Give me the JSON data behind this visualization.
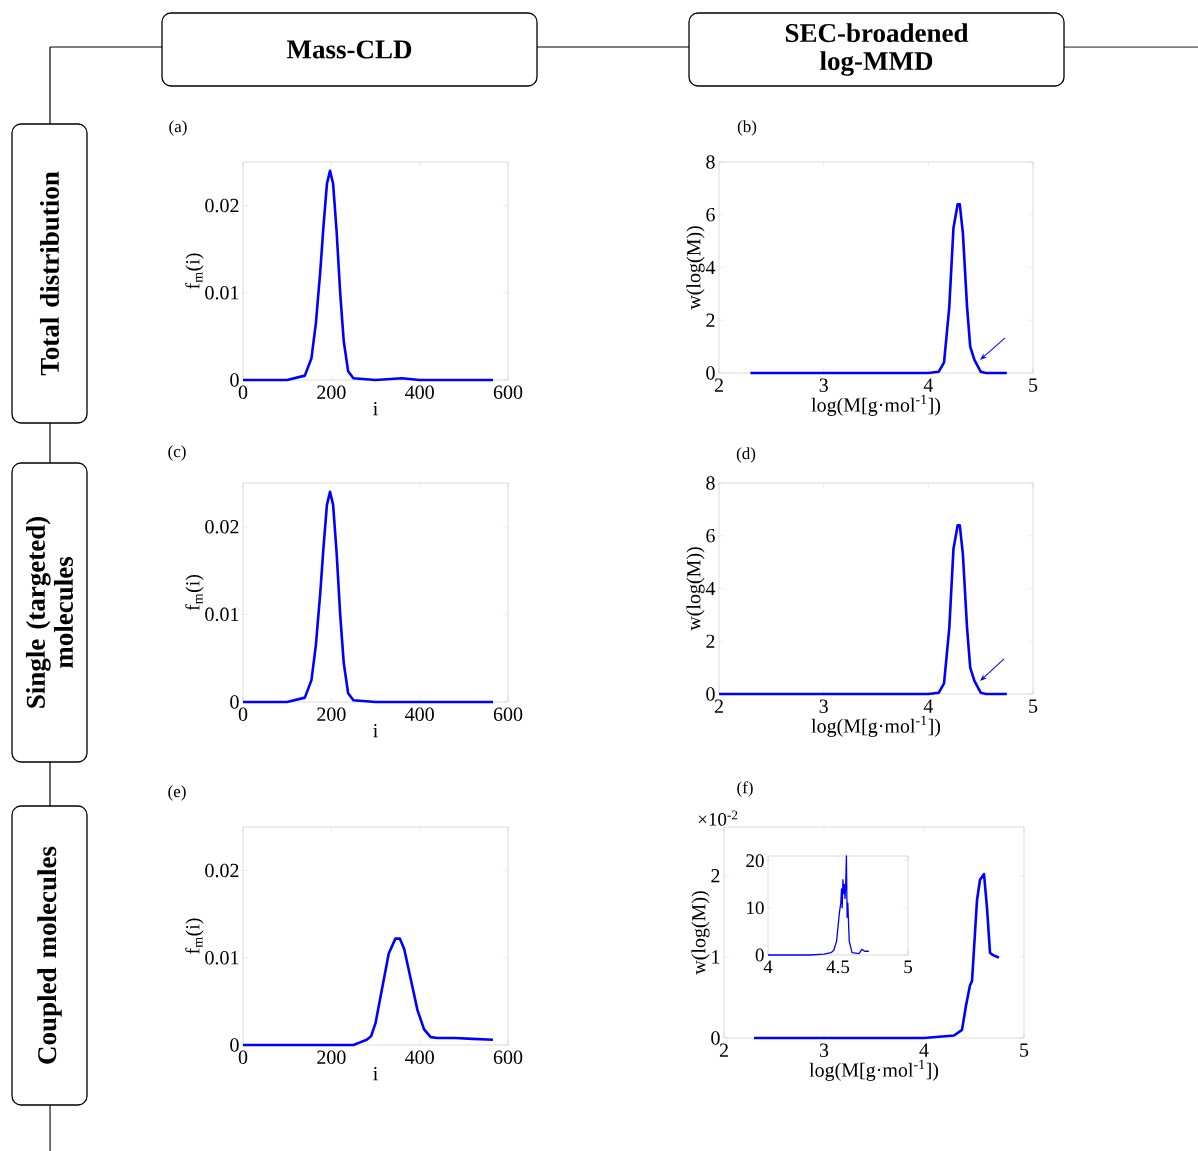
{
  "chart_data": [
    {
      "type": "other",
      "annotations": [
        "Mass-CLD",
        "SEC-broadened log-MMD",
        "Total distribution",
        "Single (targeted) molecules",
        "Coupled molecules"
      ]
    },
    {
      "type": "line",
      "title": "(a)",
      "xlabel": "i",
      "ylabel": "f$_{m}$(i)",
      "xlim": [
        0,
        600
      ],
      "ylim": [
        0,
        0.025
      ],
      "xticks": [
        0,
        200,
        400,
        600
      ],
      "yticks": [
        0,
        0.01,
        0.02
      ],
      "series": [
        {
          "color": "#0000ff",
          "x": [
            0,
            100,
            140,
            155,
            165,
            175,
            182,
            190,
            197,
            204,
            212,
            220,
            228,
            238,
            250,
            300,
            360,
            400,
            500,
            566
          ],
          "values": [
            0,
            0,
            0.0005,
            0.0025,
            0.0065,
            0.0125,
            0.0175,
            0.0225,
            0.024,
            0.0225,
            0.017,
            0.01,
            0.0045,
            0.001,
            0.0002,
            0,
            0.0002,
            0,
            0,
            0
          ]
        }
      ]
    },
    {
      "type": "line",
      "title": "(b)",
      "xlabel": "log(M[g·mol$^{-1}$])",
      "ylabel": "w(log(M))",
      "xlim": [
        2,
        5
      ],
      "ylim": [
        0,
        8
      ],
      "xticks": [
        2,
        3,
        4,
        5
      ],
      "yticks": [
        0,
        2,
        4,
        6,
        8
      ],
      "series": [
        {
          "color": "#0000ff",
          "x": [
            2.3,
            3,
            3.5,
            4.0,
            4.1,
            4.15,
            4.2,
            4.24,
            4.28,
            4.3,
            4.33,
            4.37,
            4.4,
            4.44,
            4.46,
            4.5,
            4.55,
            4.75
          ],
          "values": [
            0,
            0,
            0,
            0,
            0.05,
            0.4,
            2.5,
            5.5,
            6.4,
            6.4,
            5.3,
            2.5,
            1.0,
            0.5,
            0.35,
            0.05,
            0,
            0
          ]
        }
      ]
    },
    {
      "type": "line",
      "title": "(c)",
      "xlabel": "i",
      "ylabel": "f$_{m}$(i)",
      "xlim": [
        0,
        600
      ],
      "ylim": [
        0,
        0.025
      ],
      "xticks": [
        0,
        200,
        400,
        600
      ],
      "yticks": [
        0,
        0.01,
        0.02
      ],
      "series": [
        {
          "color": "#0000ff",
          "x": [
            0,
            100,
            140,
            155,
            165,
            175,
            182,
            190,
            197,
            204,
            212,
            220,
            228,
            238,
            250,
            300,
            400,
            500,
            566
          ],
          "values": [
            0,
            0,
            0.0005,
            0.0025,
            0.0065,
            0.0125,
            0.0175,
            0.0225,
            0.024,
            0.0225,
            0.017,
            0.01,
            0.0045,
            0.001,
            0.0002,
            0,
            0,
            0,
            0
          ]
        }
      ]
    },
    {
      "type": "line",
      "title": "(d)",
      "xlabel": "log(M[g·mol$^{-1}$])",
      "ylabel": "w(log(M))",
      "xlim": [
        2,
        5
      ],
      "ylim": [
        0,
        8
      ],
      "xticks": [
        2,
        3,
        4,
        5
      ],
      "yticks": [
        0,
        2,
        4,
        6,
        8
      ],
      "series": [
        {
          "color": "#0000ff",
          "x": [
            2.0,
            3,
            3.5,
            4.0,
            4.1,
            4.15,
            4.2,
            4.24,
            4.28,
            4.3,
            4.33,
            4.37,
            4.4,
            4.44,
            4.46,
            4.5,
            4.55,
            4.75
          ],
          "values": [
            0,
            0,
            0,
            0,
            0.05,
            0.4,
            2.5,
            5.5,
            6.4,
            6.4,
            5.3,
            2.5,
            1.0,
            0.5,
            0.35,
            0.05,
            0,
            0
          ]
        }
      ]
    },
    {
      "type": "line",
      "title": "(e)",
      "xlabel": "i",
      "ylabel": "f$_{m}$(i)",
      "xlim": [
        0,
        600
      ],
      "ylim": [
        0,
        0.025
      ],
      "xticks": [
        0,
        200,
        400,
        600
      ],
      "yticks": [
        0,
        0.01,
        0.02
      ],
      "series": [
        {
          "color": "#0000ff",
          "x": [
            0,
            100,
            200,
            250,
            265,
            280,
            290,
            300,
            315,
            330,
            345,
            355,
            365,
            380,
            395,
            410,
            425,
            440,
            480,
            520,
            566
          ],
          "values": [
            0,
            0,
            0,
            0,
            0.0003,
            0.0006,
            0.001,
            0.0025,
            0.0065,
            0.0105,
            0.0122,
            0.0122,
            0.011,
            0.0075,
            0.004,
            0.0018,
            0.0009,
            0.0008,
            0.0008,
            0.0007,
            0.0006
          ]
        }
      ]
    },
    {
      "type": "line",
      "title": "(f)",
      "xlabel": "log(M[g·mol$^{-1}$])",
      "ylabel": "w(log(M))",
      "annotations": [
        "×10$^{-2}$"
      ],
      "xlim": [
        2,
        5
      ],
      "ylim": [
        0,
        2.6
      ],
      "xticks": [
        2,
        3,
        4,
        5
      ],
      "yticks": [
        0,
        1,
        2
      ],
      "series": [
        {
          "color": "#0000ff",
          "x": [
            2.3,
            3,
            4,
            4.3,
            4.38,
            4.42,
            4.46,
            4.48,
            4.5,
            4.53,
            4.56,
            4.6,
            4.63,
            4.66,
            4.68,
            4.71,
            4.75
          ],
          "values": [
            0,
            0,
            0,
            0.03,
            0.1,
            0.4,
            0.65,
            0.7,
            1.1,
            1.7,
            1.95,
            2.02,
            1.6,
            1.05,
            1.03,
            1.01,
            0.99
          ]
        }
      ]
    },
    {
      "type": "line",
      "xlim": [
        4,
        5
      ],
      "ylim": [
        0,
        21
      ],
      "xticks": [
        4,
        4.5,
        5
      ],
      "yticks": [
        0,
        10,
        20
      ],
      "series": [
        {
          "color": "#0000ff",
          "x": [
            4,
            4.3,
            4.4,
            4.45,
            4.47,
            4.49,
            4.5,
            4.51,
            4.52,
            4.525,
            4.53,
            4.535,
            4.54,
            4.545,
            4.55,
            4.555,
            4.56,
            4.565,
            4.57,
            4.58,
            4.6,
            4.65,
            4.67,
            4.69,
            4.72
          ],
          "values": [
            0,
            0,
            0.2,
            0.5,
            1,
            3,
            6,
            9,
            11,
            14,
            10,
            16,
            13,
            15,
            12,
            15,
            21,
            8,
            11,
            3,
            0.5,
            0.3,
            1.2,
            0.8,
            0.8
          ]
        }
      ]
    }
  ]
}
